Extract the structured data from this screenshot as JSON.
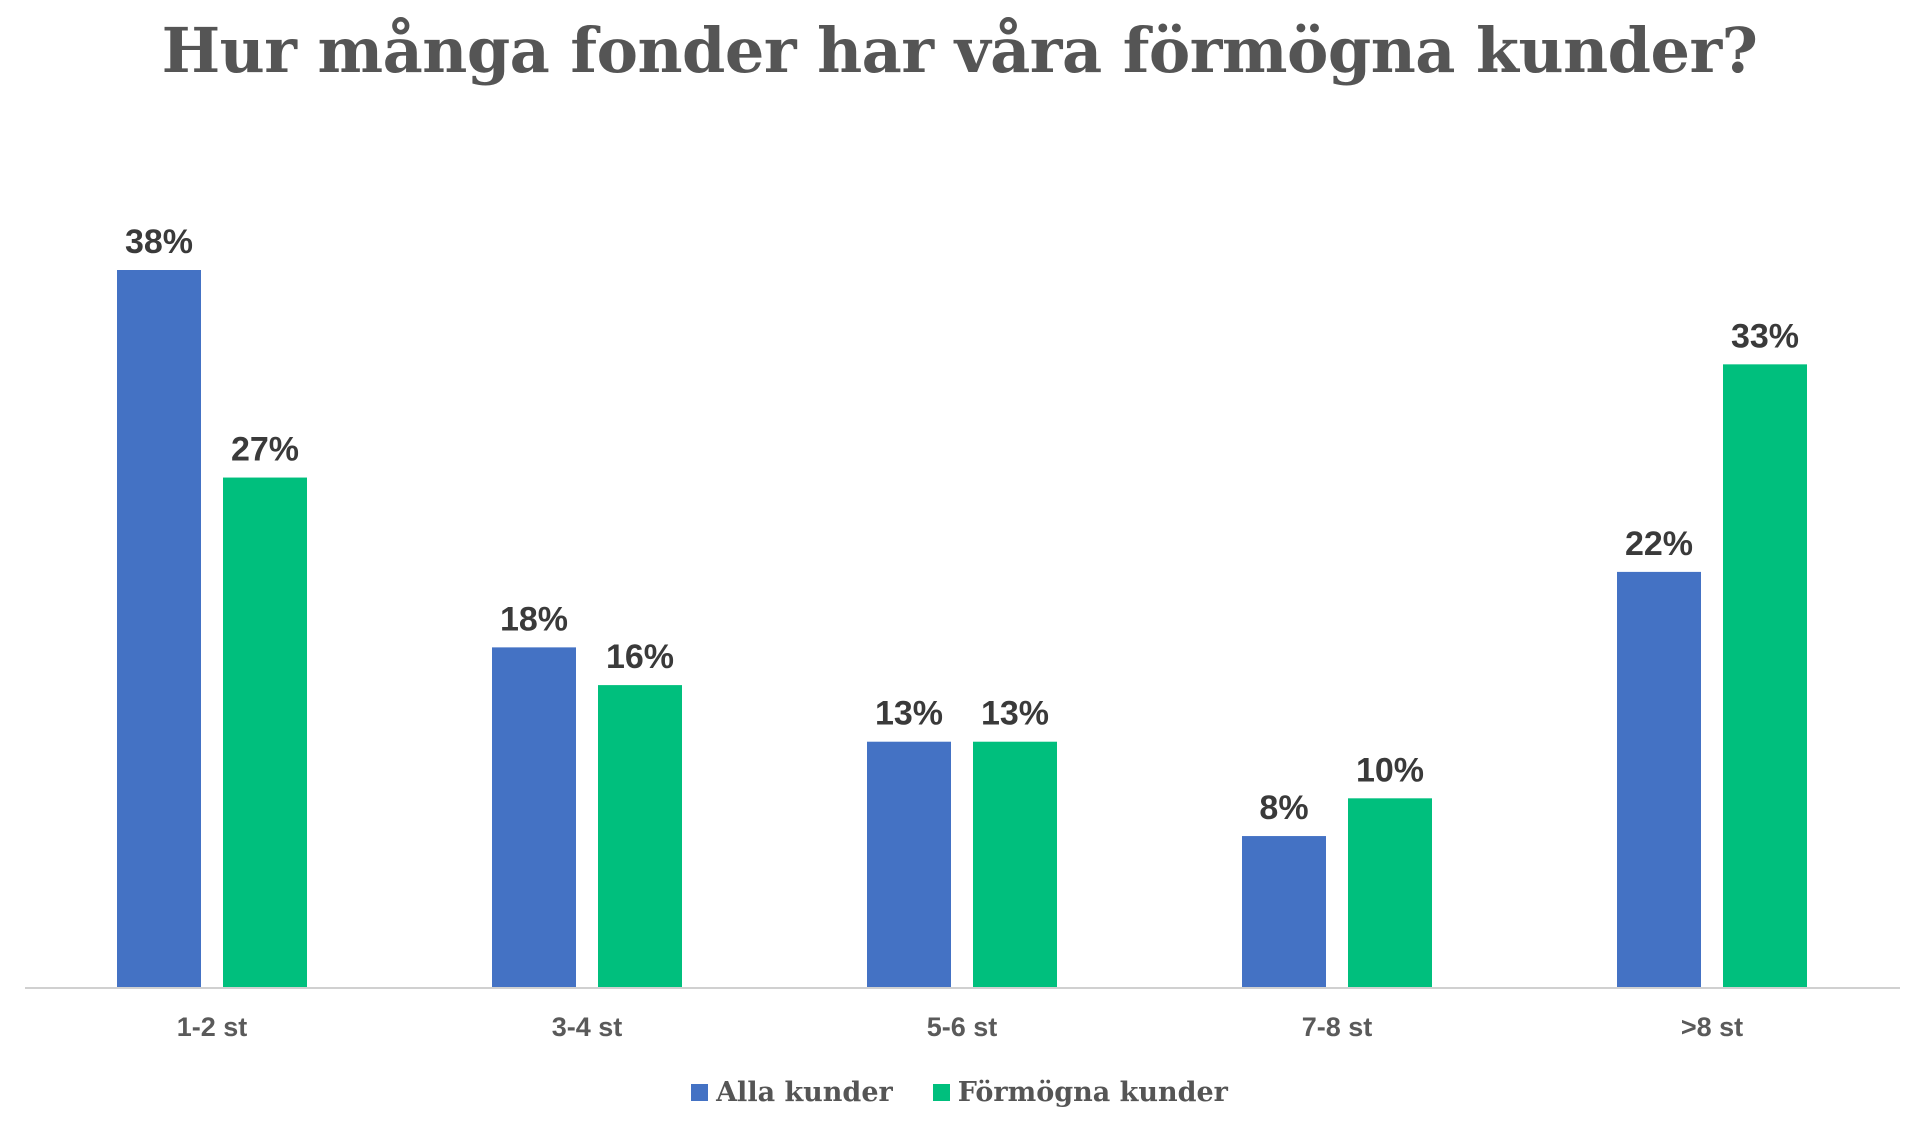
{
  "chart_data": {
    "type": "bar",
    "title": "Hur många fonder har våra förmögna kunder?",
    "xlabel": "",
    "ylabel": "",
    "categories": [
      "1-2 st",
      "3-4 st",
      "5-6 st",
      "7-8 st",
      ">8 st"
    ],
    "series": [
      {
        "name": "Alla kunder",
        "color": "#4472C4",
        "values": [
          38,
          18,
          13,
          8,
          22
        ],
        "labels": [
          "38%",
          "18%",
          "13%",
          "8%",
          "22%"
        ]
      },
      {
        "name": "Förmögna kunder",
        "color": "#00BF7D",
        "values": [
          27,
          16,
          13,
          10,
          33
        ],
        "labels": [
          "27%",
          "16%",
          "13%",
          "10%",
          "33%"
        ]
      }
    ],
    "ylim": [
      0,
      38
    ],
    "grid": false,
    "legend": "bottom",
    "axis_color": "#D0D0D0"
  }
}
